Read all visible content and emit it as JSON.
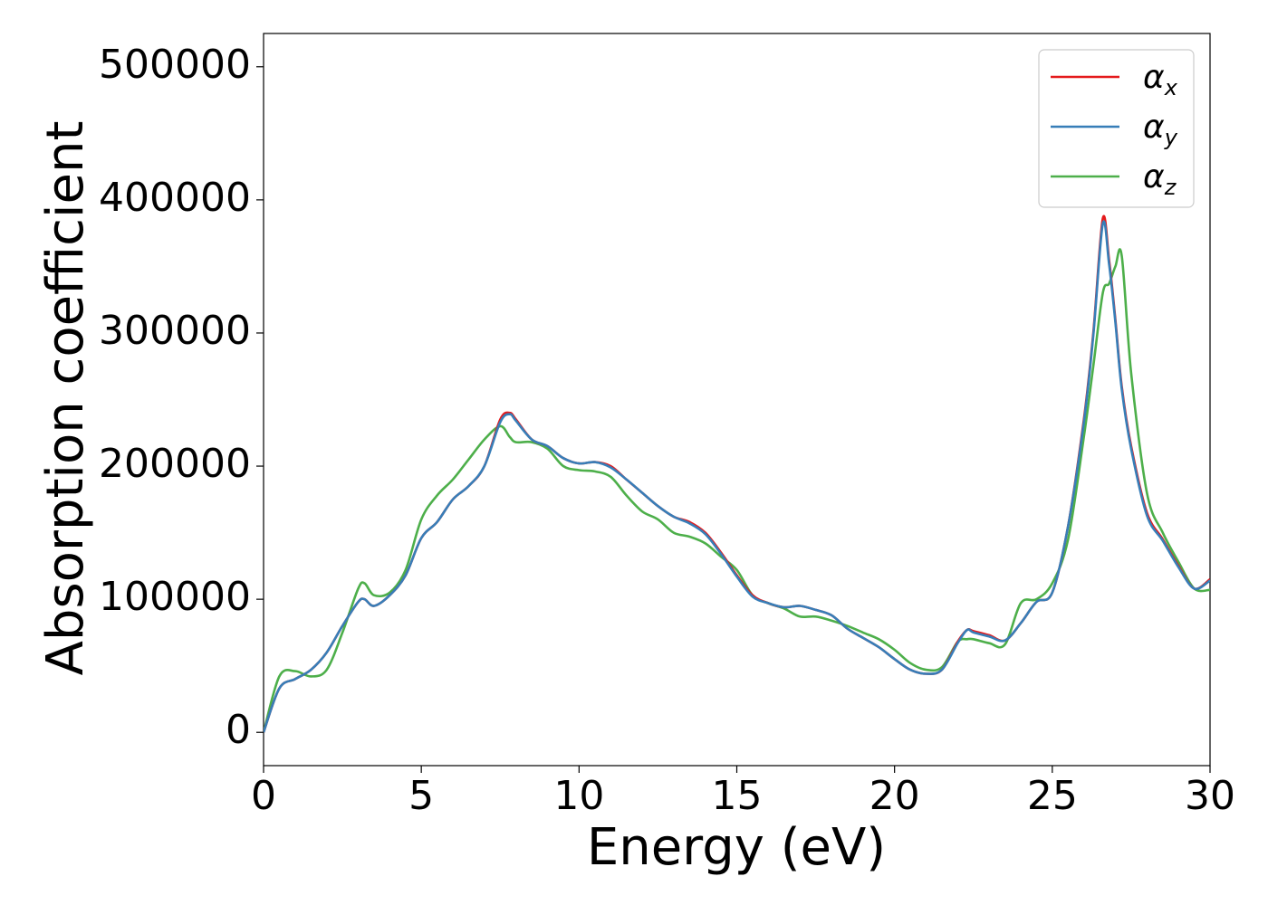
{
  "chart_data": {
    "type": "line",
    "title": "",
    "xlabel": "Energy (eV)",
    "ylabel": "Absorption coefficient",
    "xlim": [
      0,
      30
    ],
    "ylim": [
      -25000,
      525000
    ],
    "xticks": [
      0,
      5,
      10,
      15,
      20,
      25,
      30
    ],
    "yticks": [
      0,
      100000,
      200000,
      300000,
      400000,
      500000
    ],
    "grid": false,
    "legend": {
      "position": "top-right",
      "entries": [
        {
          "symbol": "α",
          "sub": "x"
        },
        {
          "symbol": "α",
          "sub": "y"
        },
        {
          "symbol": "α",
          "sub": "z"
        }
      ]
    },
    "colors": {
      "alpha_x": "#e41a1c",
      "alpha_y": "#377eb8",
      "alpha_z": "#4daf4a"
    },
    "x": [
      0.0,
      0.5,
      1.0,
      1.5,
      2.0,
      2.5,
      3.0,
      3.2,
      3.5,
      4.0,
      4.5,
      5.0,
      5.5,
      6.0,
      6.5,
      7.0,
      7.5,
      7.8,
      8.0,
      8.5,
      9.0,
      9.5,
      10.0,
      10.5,
      11.0,
      11.5,
      12.0,
      12.5,
      13.0,
      13.5,
      14.0,
      14.5,
      15.0,
      15.5,
      16.0,
      16.5,
      17.0,
      17.5,
      18.0,
      18.5,
      19.0,
      19.5,
      20.0,
      20.5,
      21.0,
      21.5,
      22.0,
      22.3,
      22.5,
      23.0,
      23.5,
      24.0,
      24.5,
      25.0,
      25.5,
      26.0,
      26.3,
      26.6,
      26.8,
      27.0,
      27.2,
      27.5,
      28.0,
      28.5,
      29.0,
      29.5,
      30.0
    ],
    "series": [
      {
        "name": "αx",
        "color": "#e41a1c",
        "values": [
          0,
          33000,
          40000,
          47000,
          60000,
          80000,
          98000,
          100000,
          95000,
          103000,
          118000,
          146000,
          158000,
          175000,
          185000,
          200000,
          235000,
          240000,
          235000,
          220000,
          215000,
          206000,
          202000,
          203000,
          200000,
          190000,
          180000,
          170000,
          162000,
          158000,
          150000,
          135000,
          118000,
          103000,
          97000,
          94000,
          95000,
          92000,
          88000,
          78000,
          71000,
          64000,
          55000,
          47000,
          44000,
          47000,
          68000,
          77000,
          76000,
          73000,
          69000,
          82000,
          98000,
          105000,
          155000,
          235000,
          300000,
          386000,
          355000,
          310000,
          260000,
          215000,
          165000,
          145000,
          125000,
          108000,
          115000
        ]
      },
      {
        "name": "αy",
        "color": "#377eb8",
        "values": [
          0,
          33000,
          40000,
          47000,
          60000,
          80000,
          98000,
          100000,
          95000,
          103000,
          118000,
          146000,
          158000,
          175000,
          185000,
          200000,
          233000,
          239000,
          234000,
          220000,
          215000,
          206000,
          202000,
          203000,
          199000,
          190000,
          180000,
          170000,
          162000,
          157000,
          149000,
          134000,
          117000,
          102000,
          97000,
          94000,
          95000,
          92000,
          88000,
          78000,
          71000,
          64000,
          55000,
          47000,
          44000,
          47000,
          67000,
          77000,
          75000,
          72000,
          69000,
          82000,
          98000,
          105000,
          155000,
          233000,
          298000,
          382000,
          352000,
          308000,
          258000,
          213000,
          163000,
          144000,
          124000,
          108000,
          114000
        ]
      },
      {
        "name": "αz",
        "color": "#4daf4a",
        "values": [
          0,
          42000,
          46000,
          42000,
          47000,
          75000,
          108000,
          112000,
          103000,
          105000,
          122000,
          160000,
          178000,
          190000,
          205000,
          220000,
          230000,
          222000,
          218000,
          218000,
          213000,
          200000,
          197000,
          196000,
          192000,
          178000,
          166000,
          160000,
          150000,
          147000,
          142000,
          132000,
          122000,
          103000,
          97000,
          93000,
          87000,
          87000,
          84000,
          80000,
          75000,
          70000,
          62000,
          52000,
          47000,
          49000,
          68000,
          70000,
          70000,
          67000,
          66000,
          97000,
          100000,
          112000,
          145000,
          222000,
          275000,
          330000,
          337000,
          350000,
          358000,
          270000,
          180000,
          150000,
          128000,
          108000,
          107000
        ]
      }
    ]
  }
}
